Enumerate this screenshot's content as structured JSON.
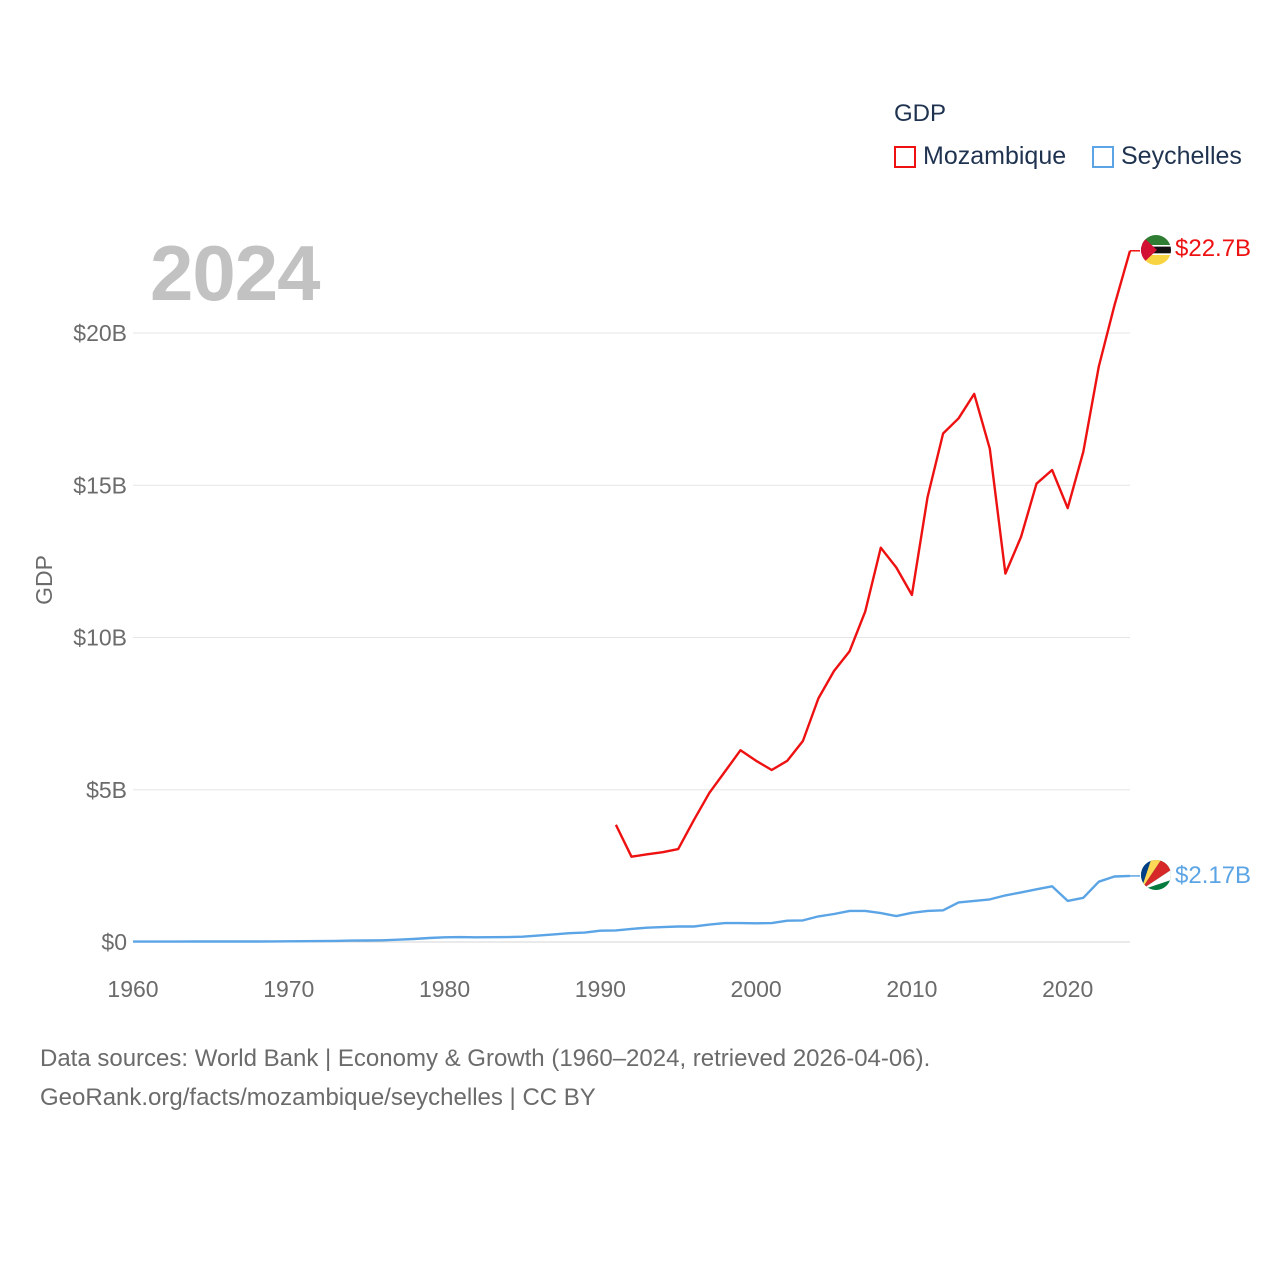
{
  "legend": {
    "title": "GDP",
    "items": [
      {
        "label": "Mozambique",
        "color": "#ee1111"
      },
      {
        "label": "Seychelles",
        "color": "#5ba4e5"
      }
    ]
  },
  "year_label": "2024",
  "footer": {
    "line1": "Data sources: World Bank | Economy & Growth (1960–2024, retrieved 2026-04-06).",
    "line2": "GeoRank.org/facts/mozambique/seychelles | CC BY"
  },
  "chart_data": {
    "type": "line",
    "title": "GDP",
    "xlabel": "",
    "ylabel": "GDP",
    "xlim": [
      1960,
      2024
    ],
    "ylim": [
      0,
      22.7
    ],
    "x_ticks": [
      {
        "value": 1960,
        "label": "1960"
      },
      {
        "value": 1970,
        "label": "1970"
      },
      {
        "value": 1980,
        "label": "1980"
      },
      {
        "value": 1990,
        "label": "1990"
      },
      {
        "value": 2000,
        "label": "2000"
      },
      {
        "value": 2010,
        "label": "2010"
      },
      {
        "value": 2020,
        "label": "2020"
      }
    ],
    "y_ticks": [
      {
        "value": 0,
        "label": "$0"
      },
      {
        "value": 5,
        "label": "$5B"
      },
      {
        "value": 10,
        "label": "$10B"
      },
      {
        "value": 15,
        "label": "$15B"
      },
      {
        "value": 20,
        "label": "$20B"
      }
    ],
    "grid": true,
    "legend_position": "top-right",
    "series": [
      {
        "name": "Mozambique",
        "color": "#ee1111",
        "end_label": "$22.7B",
        "x": [
          1991,
          1992,
          1993,
          1994,
          1995,
          1996,
          1997,
          1998,
          1999,
          2000,
          2001,
          2002,
          2003,
          2004,
          2005,
          2006,
          2007,
          2008,
          2009,
          2010,
          2011,
          2012,
          2013,
          2014,
          2015,
          2016,
          2017,
          2018,
          2019,
          2020,
          2021,
          2022,
          2023,
          2024
        ],
        "values": [
          3.85,
          2.8,
          2.88,
          2.95,
          3.05,
          4.0,
          4.9,
          5.6,
          6.3,
          5.95,
          5.65,
          5.95,
          6.6,
          8.0,
          8.9,
          9.55,
          10.85,
          12.95,
          12.3,
          11.4,
          14.6,
          16.7,
          17.2,
          18.0,
          16.2,
          12.1,
          13.3,
          15.05,
          15.5,
          14.25,
          16.1,
          18.9,
          20.9,
          22.7
        ]
      },
      {
        "name": "Seychelles",
        "color": "#5ba4e5",
        "end_label": "$2.17B",
        "x": [
          1960,
          1961,
          1962,
          1963,
          1964,
          1965,
          1966,
          1967,
          1968,
          1969,
          1970,
          1971,
          1972,
          1973,
          1974,
          1975,
          1976,
          1977,
          1978,
          1979,
          1980,
          1981,
          1982,
          1983,
          1984,
          1985,
          1986,
          1987,
          1988,
          1989,
          1990,
          1991,
          1992,
          1993,
          1994,
          1995,
          1996,
          1997,
          1998,
          1999,
          2000,
          2001,
          2002,
          2003,
          2004,
          2005,
          2006,
          2007,
          2008,
          2009,
          2010,
          2011,
          2012,
          2013,
          2014,
          2015,
          2016,
          2017,
          2018,
          2019,
          2020,
          2021,
          2022,
          2023,
          2024
        ],
        "values": [
          0.012,
          0.013,
          0.014,
          0.014,
          0.015,
          0.015,
          0.016,
          0.017,
          0.018,
          0.02,
          0.022,
          0.026,
          0.03,
          0.036,
          0.045,
          0.05,
          0.055,
          0.075,
          0.1,
          0.13,
          0.155,
          0.16,
          0.155,
          0.158,
          0.16,
          0.175,
          0.21,
          0.25,
          0.29,
          0.31,
          0.37,
          0.38,
          0.43,
          0.47,
          0.49,
          0.51,
          0.51,
          0.57,
          0.62,
          0.62,
          0.615,
          0.62,
          0.7,
          0.71,
          0.84,
          0.92,
          1.02,
          1.02,
          0.95,
          0.85,
          0.96,
          1.02,
          1.04,
          1.3,
          1.35,
          1.4,
          1.53,
          1.63,
          1.73,
          1.83,
          1.35,
          1.45,
          1.98,
          2.15,
          2.17
        ]
      }
    ]
  }
}
